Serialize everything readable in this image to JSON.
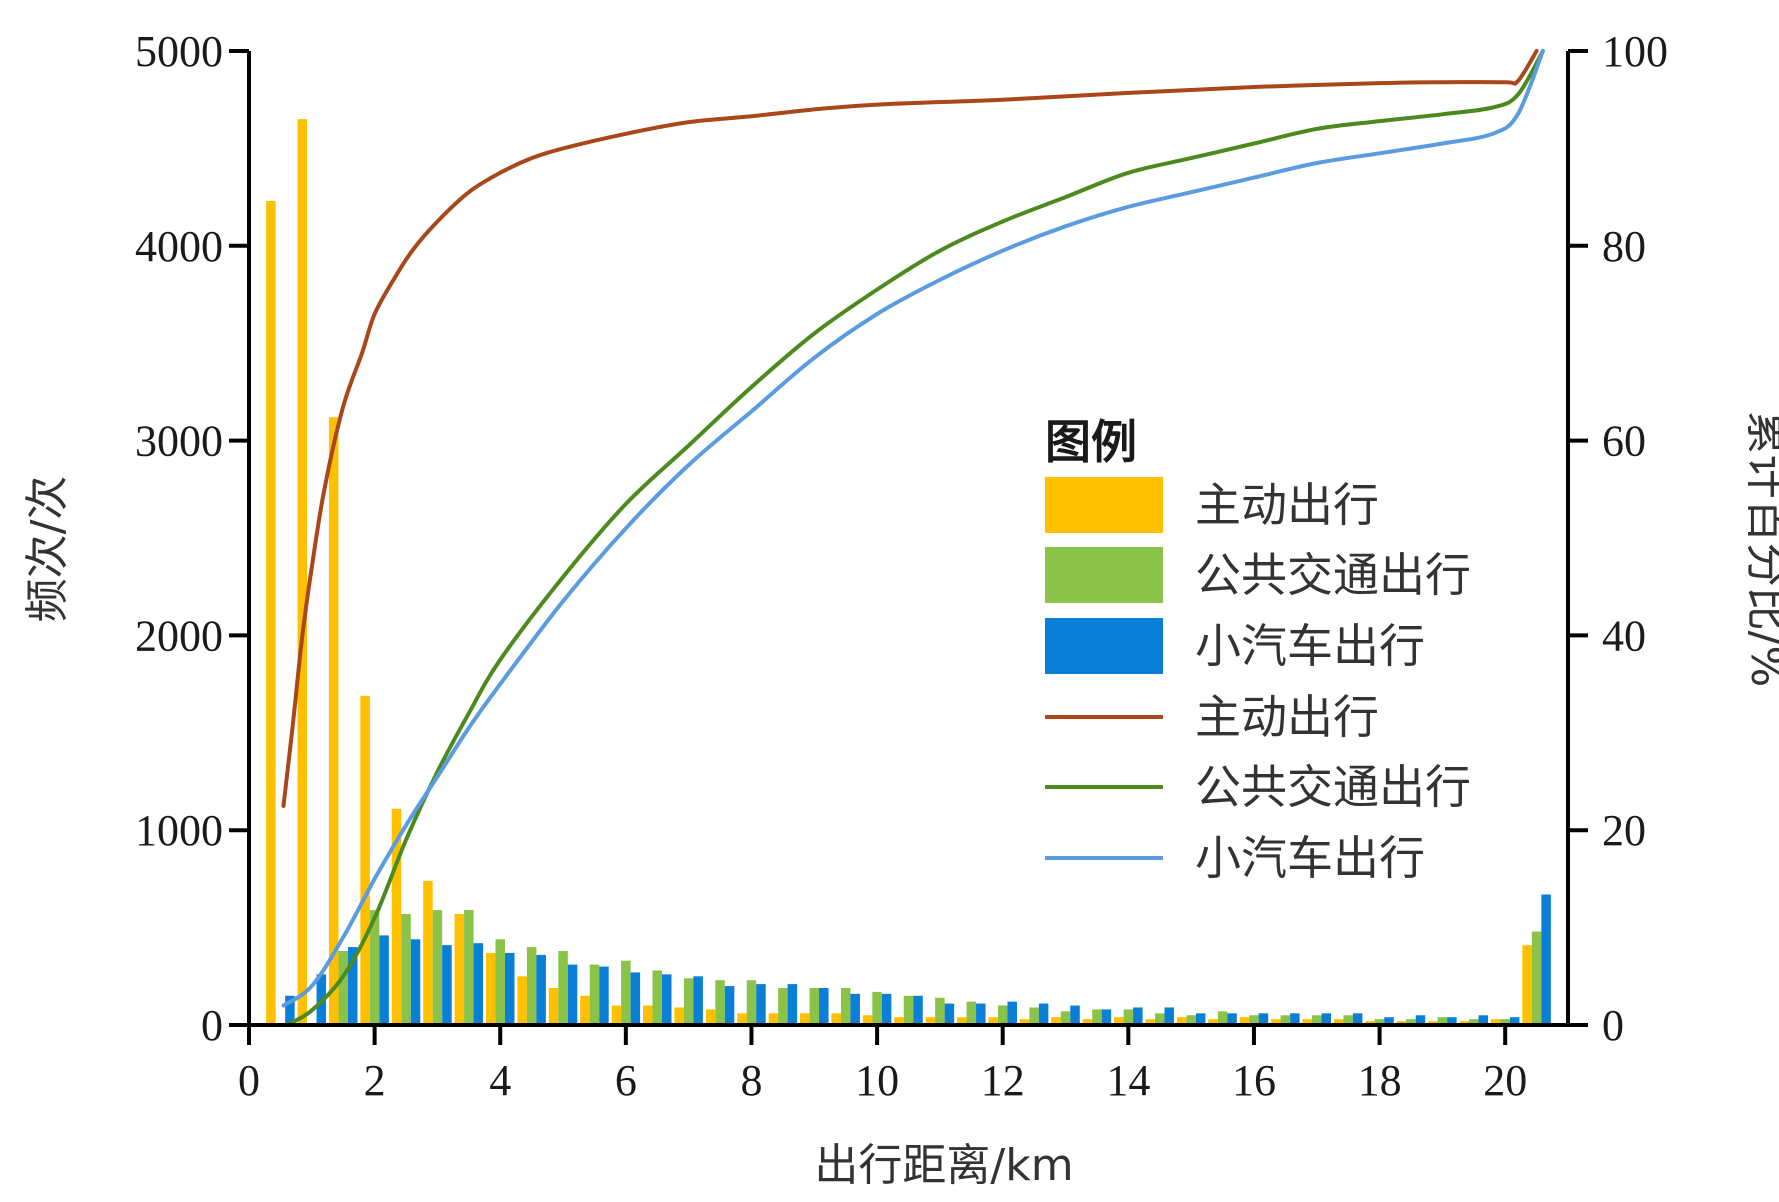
{
  "chart_data": {
    "type": "bar",
    "xlabel": "出行距离/km",
    "ylabel_left": "频次/次",
    "ylabel_right": "累计百分比/%",
    "xlim": [
      0,
      21
    ],
    "ylim_left": [
      0,
      5000
    ],
    "ylim_right": [
      0,
      100
    ],
    "x_ticks": [
      "0",
      "2",
      "4",
      "6",
      "8",
      "10",
      "12",
      "14",
      "16",
      "18",
      "20"
    ],
    "y_left_ticks": [
      "0",
      "1000",
      "2000",
      "3000",
      "4000",
      "5000"
    ],
    "y_right_ticks": [
      "0",
      "20",
      "40",
      "60",
      "80",
      "100"
    ],
    "grid": false,
    "legend_position": "center-right",
    "legend_title": "图例",
    "bin_centers": [
      0.5,
      1.0,
      1.5,
      2.0,
      2.5,
      3.0,
      3.5,
      4.0,
      4.5,
      5.0,
      5.5,
      6.0,
      6.5,
      7.0,
      7.5,
      8.0,
      8.5,
      9.0,
      9.5,
      10.0,
      10.5,
      11.0,
      11.5,
      12.0,
      12.5,
      13.0,
      13.5,
      14.0,
      14.5,
      15.0,
      15.5,
      16.0,
      16.5,
      17.0,
      17.5,
      18.0,
      18.5,
      19.0,
      19.5,
      20.0,
      20.5
    ],
    "bar_series": [
      {
        "name": "主动出行",
        "color": "#FFC000",
        "values": [
          4230,
          4650,
          3120,
          1690,
          1110,
          740,
          570,
          370,
          250,
          190,
          150,
          100,
          100,
          90,
          80,
          60,
          60,
          60,
          60,
          50,
          40,
          40,
          40,
          40,
          30,
          40,
          30,
          40,
          30,
          40,
          30,
          40,
          30,
          30,
          30,
          20,
          20,
          20,
          20,
          30,
          410
        ]
      },
      {
        "name": "公共交通出行",
        "color": "#8BC34A",
        "values": [
          0,
          0,
          380,
          590,
          570,
          590,
          590,
          440,
          400,
          380,
          310,
          330,
          280,
          240,
          230,
          230,
          190,
          190,
          190,
          170,
          150,
          140,
          120,
          100,
          90,
          70,
          80,
          80,
          60,
          50,
          70,
          50,
          50,
          50,
          50,
          30,
          30,
          40,
          30,
          30,
          480
        ]
      },
      {
        "name": "小汽车出行",
        "color": "#0A7FD8",
        "values": [
          150,
          260,
          400,
          460,
          440,
          410,
          420,
          370,
          360,
          310,
          300,
          270,
          260,
          250,
          200,
          210,
          210,
          190,
          160,
          160,
          150,
          110,
          110,
          120,
          110,
          100,
          80,
          90,
          90,
          60,
          60,
          60,
          60,
          60,
          60,
          40,
          50,
          40,
          50,
          40,
          670
        ]
      }
    ],
    "line_series": [
      {
        "name": "主动出行",
        "color": "#A9461A",
        "x": [
          0.55,
          0.7,
          0.85,
          1.0,
          1.2,
          1.5,
          1.8,
          2.0,
          2.3,
          2.6,
          3.0,
          3.5,
          4.0,
          4.5,
          5.0,
          6.0,
          7.0,
          8.0,
          9.0,
          10.0,
          12.0,
          14.0,
          16.0,
          18.0,
          19.0,
          20.0,
          20.2,
          20.5
        ],
        "y": [
          22.5,
          31,
          40,
          47,
          55,
          63.5,
          69,
          73,
          76.5,
          79.5,
          82.5,
          85.5,
          87.5,
          89,
          90,
          91.5,
          92.7,
          93.3,
          94,
          94.5,
          95,
          95.7,
          96.3,
          96.7,
          96.8,
          96.8,
          96.9,
          100
        ]
      },
      {
        "name": "公共交通出行",
        "color": "#4D8A1E",
        "x": [
          0.6,
          1.0,
          1.5,
          2.0,
          2.5,
          3.0,
          3.5,
          4.0,
          5.0,
          6.0,
          7.0,
          8.0,
          9.0,
          10.0,
          11.0,
          12.0,
          13.0,
          14.0,
          15.0,
          16.0,
          17.0,
          18.0,
          19.0,
          19.8,
          20.2,
          20.6
        ],
        "y": [
          0,
          1.5,
          5,
          11,
          19,
          26,
          32,
          37.5,
          46,
          53.5,
          59.5,
          65.5,
          71,
          75.5,
          79.5,
          82.5,
          85,
          87.5,
          89,
          90.5,
          92,
          92.8,
          93.5,
          94.2,
          95.5,
          100
        ]
      },
      {
        "name": "小汽车出行",
        "color": "#5B9BE0",
        "x": [
          0.55,
          1.0,
          1.5,
          2.0,
          2.5,
          3.0,
          3.5,
          4.0,
          5.0,
          6.0,
          7.0,
          8.0,
          9.0,
          10.0,
          11.0,
          12.0,
          13.0,
          14.0,
          15.0,
          16.0,
          17.0,
          18.0,
          19.0,
          19.8,
          20.2,
          20.6
        ],
        "y": [
          2,
          4,
          9,
          15,
          20.5,
          25.5,
          30.5,
          35,
          43.5,
          51,
          57.5,
          63,
          68.5,
          73,
          76.5,
          79.5,
          82,
          84,
          85.5,
          87,
          88.5,
          89.5,
          90.5,
          91.5,
          93.5,
          100
        ]
      }
    ]
  }
}
